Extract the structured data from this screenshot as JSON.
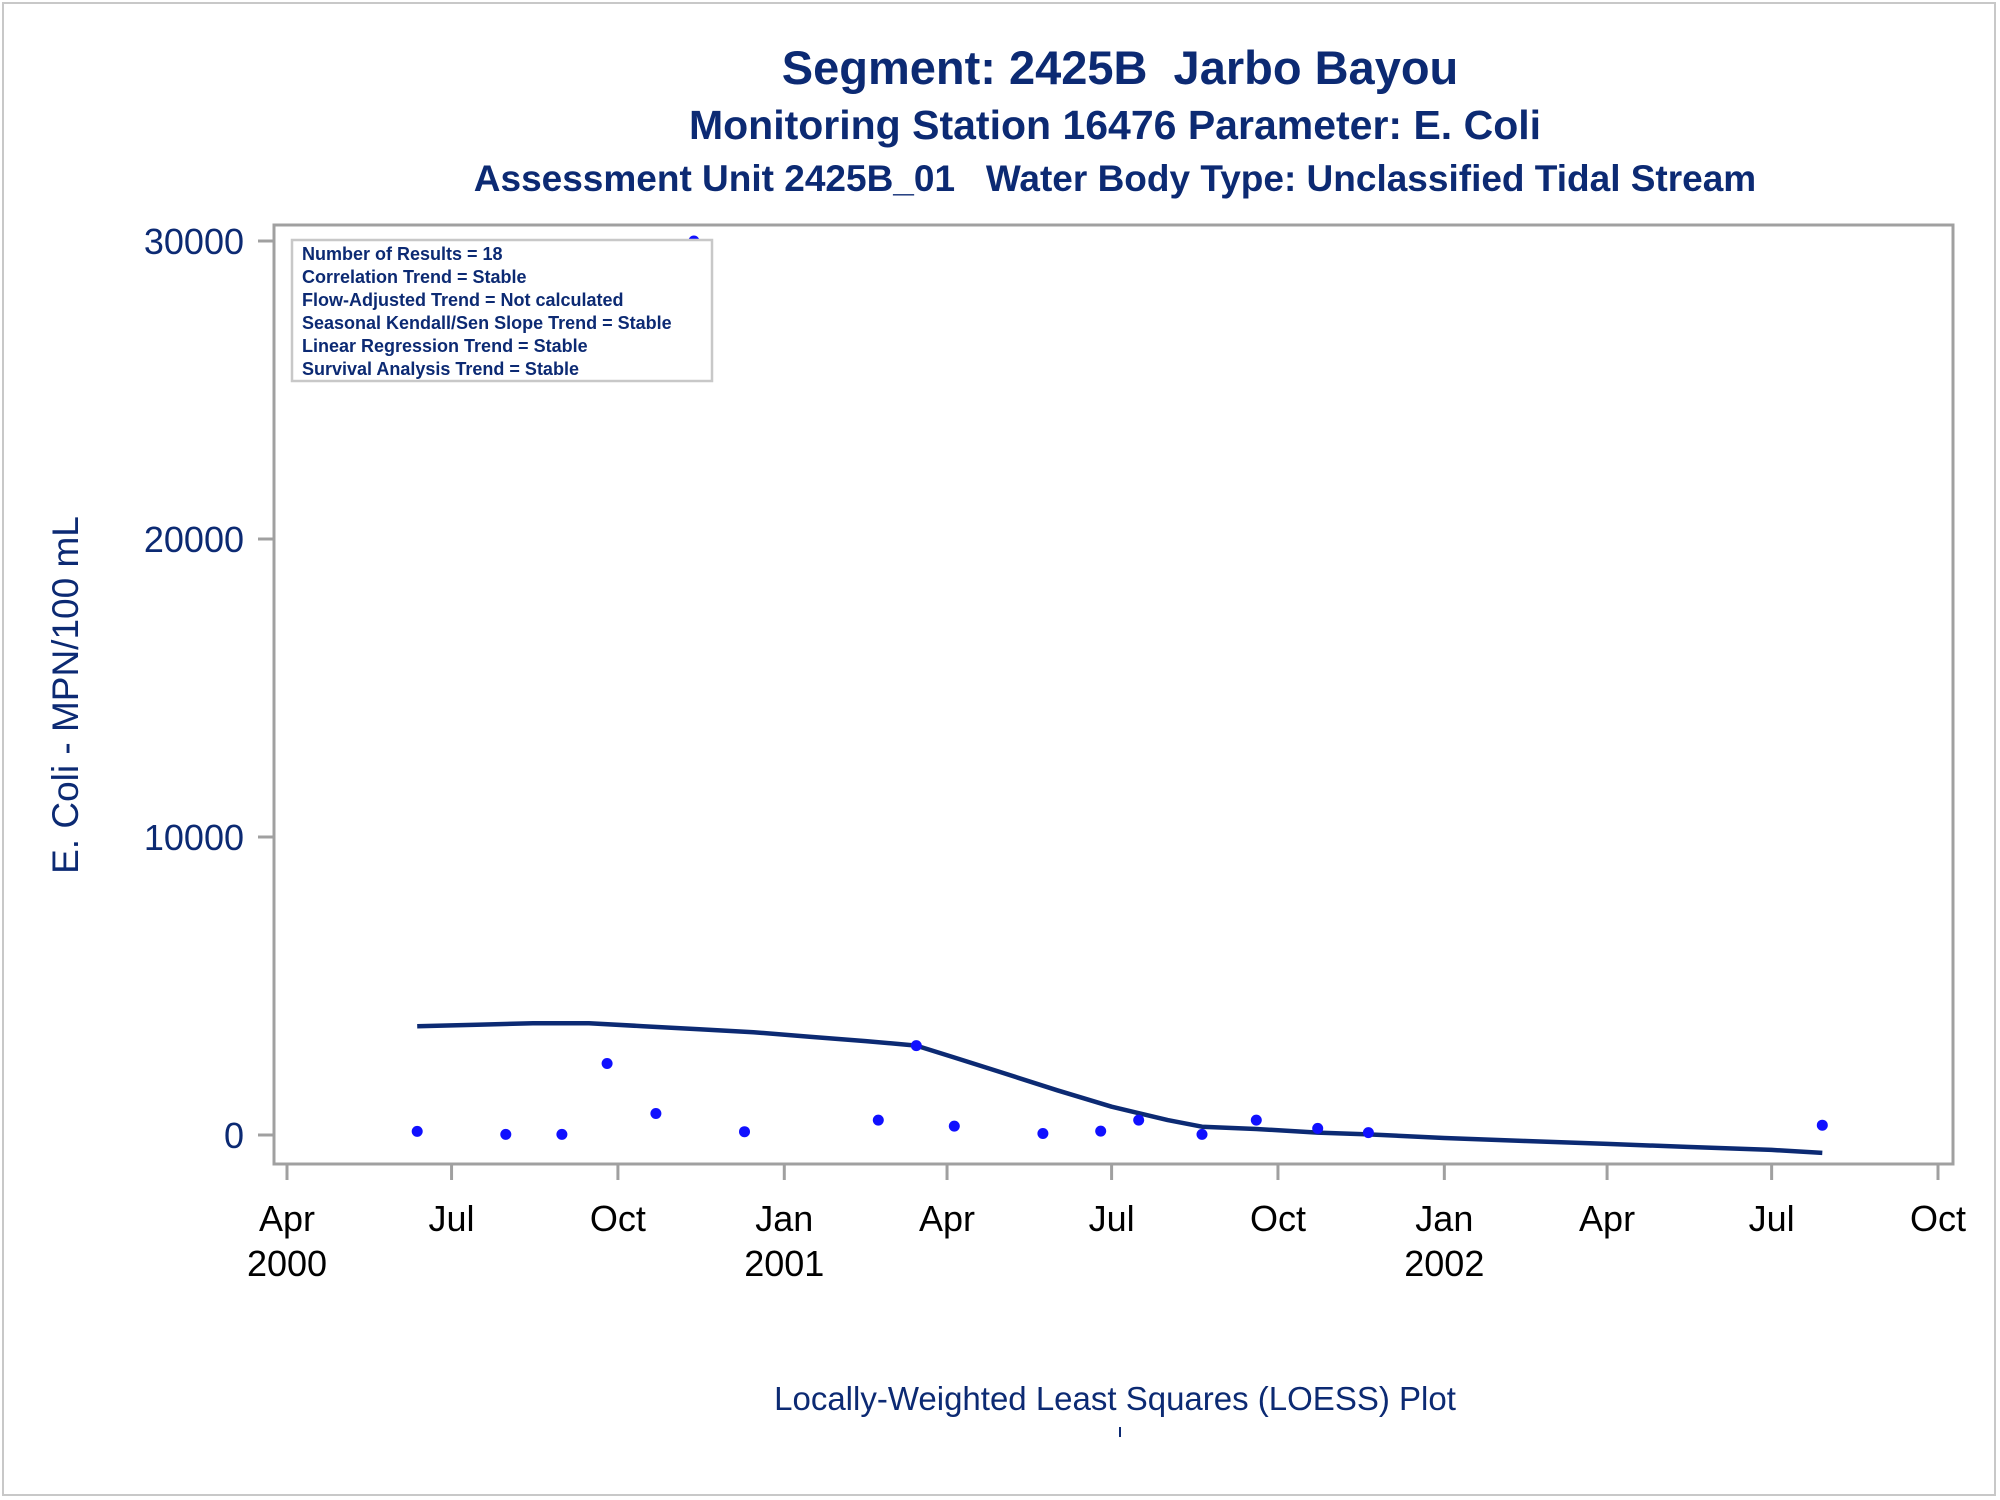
{
  "titles": {
    "line1": "Segment: 2425B  Jarbo Bayou",
    "line2": "Monitoring Station 16476 Parameter: E. Coli",
    "line3": "Assessment Unit 2425B_01   Water Body Type: Unclassified Tidal Stream"
  },
  "footnote": "Locally-Weighted Least Squares (LOESS) Plot",
  "colors": {
    "text": "#0c2a73",
    "points": "#1010ff",
    "loess_line": "#0c2a73",
    "frame": "#a0a0a0"
  },
  "chart_data": {
    "type": "scatter",
    "ylabel": "E. Coli - MPN/100 mL",
    "xlabel": "",
    "ylim": [
      -1000,
      30000
    ],
    "y_ticks": [
      0,
      10000,
      20000,
      30000
    ],
    "xlim": [
      "2000-03-08",
      "2002-10-09"
    ],
    "x_ticks": [
      {
        "date": "2000-04-01",
        "label": "Apr",
        "year": "2000"
      },
      {
        "date": "2000-07-01",
        "label": "Jul",
        "year": ""
      },
      {
        "date": "2000-10-01",
        "label": "Oct",
        "year": ""
      },
      {
        "date": "2001-01-01",
        "label": "Jan",
        "year": "2001"
      },
      {
        "date": "2001-04-01",
        "label": "Apr",
        "year": ""
      },
      {
        "date": "2001-07-01",
        "label": "Jul",
        "year": ""
      },
      {
        "date": "2001-10-01",
        "label": "Oct",
        "year": ""
      },
      {
        "date": "2002-01-01",
        "label": "Jan",
        "year": "2002"
      },
      {
        "date": "2002-04-01",
        "label": "Apr",
        "year": ""
      },
      {
        "date": "2002-07-01",
        "label": "Jul",
        "year": ""
      },
      {
        "date": "2002-10-01",
        "label": "Oct",
        "year": ""
      }
    ],
    "legend_placement": "top-left",
    "stats": [
      "Number of Results = 18",
      "Correlation Trend = Stable",
      "Flow-Adjusted Trend = Not calculated",
      "Seasonal Kendall/Sen Slope Trend = Stable",
      "Linear Regression Trend = Stable",
      "Survival Analysis Trend = Stable"
    ],
    "points": [
      {
        "x": "2000-06-12",
        "y": 120
      },
      {
        "x": "2000-07-31",
        "y": 20
      },
      {
        "x": "2000-08-31",
        "y": 20
      },
      {
        "x": "2000-09-25",
        "y": 2400
      },
      {
        "x": "2000-10-22",
        "y": 720
      },
      {
        "x": "2000-11-12",
        "y": 30000
      },
      {
        "x": "2000-12-10",
        "y": 110
      },
      {
        "x": "2001-02-22",
        "y": 500
      },
      {
        "x": "2001-03-15",
        "y": 3000
      },
      {
        "x": "2001-04-05",
        "y": 300
      },
      {
        "x": "2001-05-24",
        "y": 50
      },
      {
        "x": "2001-06-25",
        "y": 130
      },
      {
        "x": "2001-07-16",
        "y": 500
      },
      {
        "x": "2001-08-20",
        "y": 20
      },
      {
        "x": "2001-09-19",
        "y": 500
      },
      {
        "x": "2001-10-23",
        "y": 220
      },
      {
        "x": "2001-11-20",
        "y": 80
      },
      {
        "x": "2002-07-29",
        "y": 330
      }
    ],
    "loess": [
      {
        "x": "2000-06-12",
        "y": 3650
      },
      {
        "x": "2000-07-15",
        "y": 3700
      },
      {
        "x": "2000-08-15",
        "y": 3750
      },
      {
        "x": "2000-09-15",
        "y": 3750
      },
      {
        "x": "2000-10-15",
        "y": 3650
      },
      {
        "x": "2000-11-15",
        "y": 3550
      },
      {
        "x": "2000-12-15",
        "y": 3450
      },
      {
        "x": "2001-01-15",
        "y": 3300
      },
      {
        "x": "2001-02-15",
        "y": 3150
      },
      {
        "x": "2001-03-15",
        "y": 3000
      },
      {
        "x": "2001-04-05",
        "y": 2600
      },
      {
        "x": "2001-05-01",
        "y": 2100
      },
      {
        "x": "2001-06-01",
        "y": 1500
      },
      {
        "x": "2001-07-01",
        "y": 950
      },
      {
        "x": "2001-08-01",
        "y": 500
      },
      {
        "x": "2001-08-20",
        "y": 280
      },
      {
        "x": "2001-09-19",
        "y": 200
      },
      {
        "x": "2001-10-23",
        "y": 80
      },
      {
        "x": "2001-11-20",
        "y": 20
      },
      {
        "x": "2002-01-01",
        "y": -100
      },
      {
        "x": "2002-02-15",
        "y": -200
      },
      {
        "x": "2002-04-01",
        "y": -300
      },
      {
        "x": "2002-05-15",
        "y": -400
      },
      {
        "x": "2002-07-01",
        "y": -500
      },
      {
        "x": "2002-07-29",
        "y": -600
      }
    ]
  }
}
